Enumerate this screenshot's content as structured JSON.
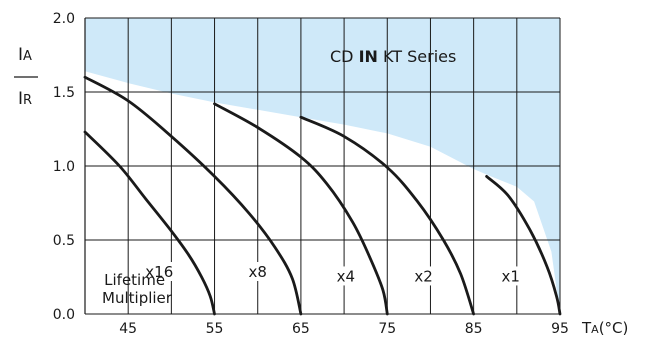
{
  "chart_data": {
    "type": "line",
    "title": "",
    "series_label": {
      "prefix": "CD ",
      "bold": "IN",
      "suffix": " KT Series"
    },
    "ylabel": {
      "numerator": {
        "main": "I",
        "sub": "A"
      },
      "denominator": {
        "main": "I",
        "sub": "R"
      }
    },
    "xlabel": {
      "main": "T",
      "sub": "A",
      "unit": "(°C)"
    },
    "xlim": [
      40,
      95
    ],
    "ylim": [
      0,
      2.0
    ],
    "x_ticks": [
      45,
      55,
      65,
      75,
      85,
      95
    ],
    "x_tick_labels": [
      "45",
      "55",
      "65",
      "75",
      "85",
      "95"
    ],
    "x_minor_grid": [
      50,
      60,
      70,
      80,
      90
    ],
    "y_ticks": [
      0,
      0.5,
      1.0,
      1.5,
      2.0
    ],
    "y_tick_labels": [
      "0.0",
      "0.5",
      "1.0",
      "1.5",
      "2.0"
    ],
    "grid": true,
    "colors": {
      "region": "#cfe9f9",
      "curve": "#1a1a1a",
      "grid": "#1a1a1a"
    },
    "region_boundary": [
      [
        40,
        1.64
      ],
      [
        45,
        1.56
      ],
      [
        50,
        1.49
      ],
      [
        55,
        1.43
      ],
      [
        60,
        1.38
      ],
      [
        65,
        1.33
      ],
      [
        70,
        1.28
      ],
      [
        75,
        1.22
      ],
      [
        80,
        1.13
      ],
      [
        85,
        0.98
      ],
      [
        87,
        0.93
      ],
      [
        90,
        0.86
      ],
      [
        92,
        0.76
      ],
      [
        94,
        0.42
      ],
      [
        95,
        0.0
      ]
    ],
    "annotations": {
      "lifetime_multiplier": [
        "Lifetime",
        "Multiplier"
      ]
    },
    "series": [
      {
        "name": "x16",
        "points": [
          [
            40,
            1.23
          ],
          [
            44,
            1.0
          ],
          [
            47,
            0.78
          ],
          [
            50,
            0.56
          ],
          [
            52,
            0.4
          ],
          [
            53.5,
            0.25
          ],
          [
            54.5,
            0.12
          ],
          [
            55,
            0.0
          ]
        ]
      },
      {
        "name": "x8",
        "points": [
          [
            40,
            1.6
          ],
          [
            45,
            1.44
          ],
          [
            50,
            1.2
          ],
          [
            55,
            0.93
          ],
          [
            59,
            0.68
          ],
          [
            62,
            0.45
          ],
          [
            64,
            0.24
          ],
          [
            65,
            0.0
          ]
        ]
      },
      {
        "name": "x4",
        "points": [
          [
            55,
            1.42
          ],
          [
            60,
            1.26
          ],
          [
            65,
            1.06
          ],
          [
            68,
            0.88
          ],
          [
            71,
            0.62
          ],
          [
            73,
            0.38
          ],
          [
            74.5,
            0.16
          ],
          [
            75,
            0.0
          ]
        ]
      },
      {
        "name": "x2",
        "points": [
          [
            65,
            1.33
          ],
          [
            70,
            1.2
          ],
          [
            75,
            0.99
          ],
          [
            78.5,
            0.76
          ],
          [
            81.5,
            0.5
          ],
          [
            83.5,
            0.27
          ],
          [
            85,
            0.0
          ]
        ]
      },
      {
        "name": "x1",
        "points": [
          [
            86.5,
            0.93
          ],
          [
            89,
            0.8
          ],
          [
            91.5,
            0.57
          ],
          [
            93.5,
            0.32
          ],
          [
            94.6,
            0.12
          ],
          [
            95,
            0.0
          ]
        ]
      }
    ],
    "curve_labels": [
      {
        "text": "x16",
        "x": 48.6,
        "y": 0.25
      },
      {
        "text": "x8",
        "x": 60.0,
        "y": 0.25
      },
      {
        "text": "x4",
        "x": 70.2,
        "y": 0.22
      },
      {
        "text": "x2",
        "x": 79.2,
        "y": 0.22
      },
      {
        "text": "x1",
        "x": 89.3,
        "y": 0.22
      }
    ]
  }
}
